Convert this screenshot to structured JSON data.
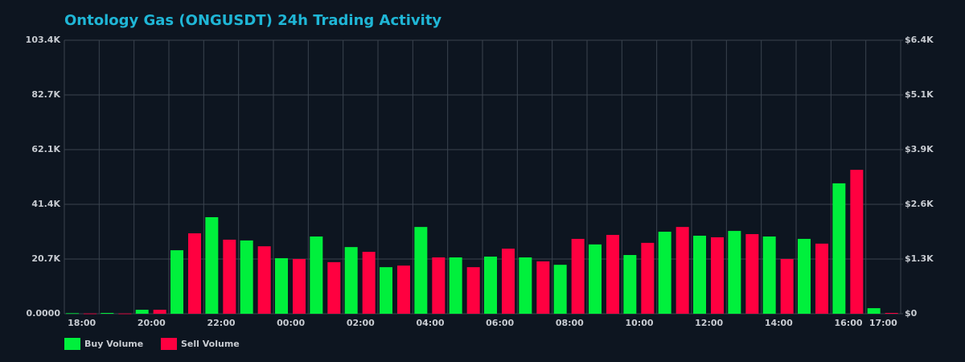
{
  "chart_data": {
    "type": "bar",
    "title": "Ontology Gas (ONGUSDT) 24h Trading Activity",
    "categories": [
      "18:00",
      null,
      "20:00",
      null,
      "22:00",
      null,
      "00:00",
      null,
      "02:00",
      null,
      "04:00",
      null,
      "06:00",
      null,
      "08:00",
      null,
      "10:00",
      null,
      "12:00",
      null,
      "14:00",
      null,
      "16:00",
      "17:00"
    ],
    "series": [
      {
        "name": "Buy Volume",
        "color": "#00f03c",
        "values": [
          200,
          300,
          1500,
          24000,
          36500,
          27700,
          21000,
          29200,
          25200,
          17600,
          32800,
          21300,
          21600,
          21300,
          18500,
          26200,
          22200,
          31000,
          29500,
          31300,
          29200,
          28300,
          49300,
          2100
        ]
      },
      {
        "name": "Sell Volume",
        "color": "#ff0040",
        "values": [
          100,
          100,
          1500,
          30400,
          28000,
          25500,
          20700,
          19500,
          23400,
          18200,
          21300,
          17600,
          24600,
          19800,
          28300,
          29800,
          26800,
          32800,
          28900,
          30100,
          20700,
          26500,
          54400,
          300
        ]
      }
    ],
    "ylim": [
      0,
      103400
    ],
    "yticks": [
      {
        "value": 0,
        "label": "0.0000"
      },
      {
        "value": 20680,
        "label": "20.7K"
      },
      {
        "value": 41360,
        "label": "41.4K"
      },
      {
        "value": 62040,
        "label": "62.1K"
      },
      {
        "value": 82720,
        "label": "82.7K"
      },
      {
        "value": 103400,
        "label": "103.4K"
      }
    ],
    "y2lim": [
      0,
      6430
    ],
    "y2ticks": [
      {
        "value": 0,
        "label": "$0"
      },
      {
        "value": 1286,
        "label": "$1.3K"
      },
      {
        "value": 2572,
        "label": "$2.6K"
      },
      {
        "value": 3858,
        "label": "$3.9K"
      },
      {
        "value": 5144,
        "label": "$5.1K"
      },
      {
        "value": 6430,
        "label": "$6.4K"
      }
    ],
    "grid": true,
    "legend": "bottom-left"
  }
}
